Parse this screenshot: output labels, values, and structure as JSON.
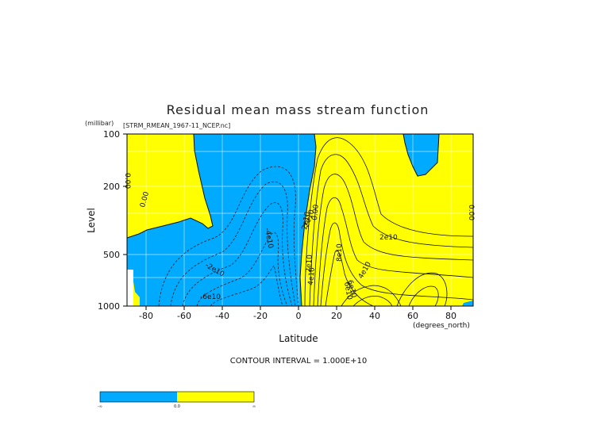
{
  "chart_data": {
    "type": "contour",
    "title": "Residual mean mass stream function",
    "subtitle": "[STRM_RMEAN_1967-11_NCEP.nc]",
    "xlabel": "Latitude",
    "xunits": "(degrees_north)",
    "ylabel": "Level",
    "yunits": "(millibar)",
    "x_ticks": [
      "-80",
      "-60",
      "-40",
      "-20",
      "0",
      "20",
      "40",
      "60",
      "80"
    ],
    "y_ticks": [
      "100",
      "200",
      "500",
      "1000"
    ],
    "xlim": [
      -90,
      90
    ],
    "ylim": [
      1000,
      100
    ],
    "y_scale": "log",
    "contour_interval_text": "CONTOUR INTERVAL = 1.000E+10",
    "contour_labels": [
      "0.00",
      "0.00",
      "0.00",
      "0.00",
      "2e10",
      "4e10",
      "2e10",
      "2e10",
      "6e10",
      "-2e10",
      "-4e10",
      "-6e10",
      "2e10",
      "4e10",
      "6e10",
      "8e10"
    ],
    "colors": {
      "negative": "#00aaff",
      "positive": "#ffff00"
    },
    "colorbar_labels": [
      "-∞",
      "0.0",
      "∞"
    ]
  }
}
